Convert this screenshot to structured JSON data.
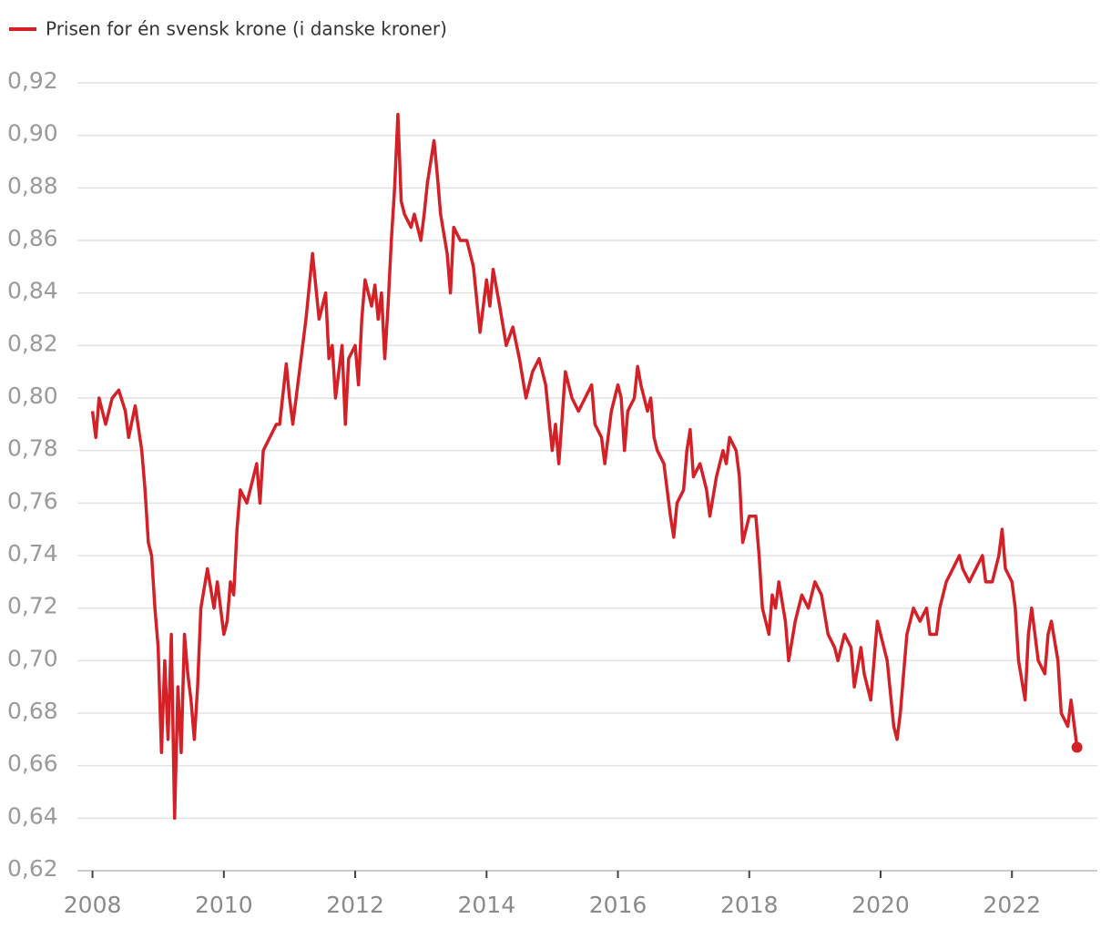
{
  "chart_data": {
    "type": "line",
    "xlim": [
      2007.77,
      2023.3
    ],
    "xticks": [
      2008,
      2010,
      2012,
      2014,
      2016,
      2018,
      2020,
      2022
    ],
    "ylim": [
      0.62,
      0.92
    ],
    "yticks": [
      {
        "value": 0.62,
        "label": "0,62"
      },
      {
        "value": 0.64,
        "label": "0,64"
      },
      {
        "value": 0.66,
        "label": "0,66"
      },
      {
        "value": 0.68,
        "label": "0,68"
      },
      {
        "value": 0.7,
        "label": "0,70"
      },
      {
        "value": 0.72,
        "label": "0,72"
      },
      {
        "value": 0.74,
        "label": "0,74"
      },
      {
        "value": 0.76,
        "label": "0,76"
      },
      {
        "value": 0.78,
        "label": "0,78"
      },
      {
        "value": 0.8,
        "label": "0,80"
      },
      {
        "value": 0.82,
        "label": "0,82"
      },
      {
        "value": 0.84,
        "label": "0,84"
      },
      {
        "value": 0.86,
        "label": "0,86"
      },
      {
        "value": 0.88,
        "label": "0,88"
      },
      {
        "value": 0.9,
        "label": "0,90"
      },
      {
        "value": 0.92,
        "label": "0,92"
      }
    ],
    "grid": true,
    "x": [
      2008.0,
      2008.05,
      2008.1,
      2008.2,
      2008.3,
      2008.4,
      2008.5,
      2008.55,
      2008.65,
      2008.75,
      2008.8,
      2008.85,
      2008.9,
      2008.95,
      2009.0,
      2009.05,
      2009.1,
      2009.15,
      2009.2,
      2009.25,
      2009.3,
      2009.35,
      2009.4,
      2009.45,
      2009.5,
      2009.55,
      2009.6,
      2009.65,
      2009.75,
      2009.85,
      2009.9,
      2010.0,
      2010.05,
      2010.1,
      2010.15,
      2010.2,
      2010.25,
      2010.35,
      2010.45,
      2010.5,
      2010.55,
      2010.6,
      2010.7,
      2010.8,
      2010.85,
      2010.95,
      2011.0,
      2011.05,
      2011.15,
      2011.25,
      2011.35,
      2011.45,
      2011.55,
      2011.6,
      2011.65,
      2011.7,
      2011.8,
      2011.85,
      2011.9,
      2012.0,
      2012.05,
      2012.1,
      2012.15,
      2012.25,
      2012.3,
      2012.35,
      2012.4,
      2012.45,
      2012.5,
      2012.55,
      2012.6,
      2012.65,
      2012.7,
      2012.75,
      2012.85,
      2012.9,
      2013.0,
      2013.05,
      2013.1,
      2013.2,
      2013.25,
      2013.3,
      2013.4,
      2013.45,
      2013.5,
      2013.6,
      2013.7,
      2013.8,
      2013.9,
      2014.0,
      2014.05,
      2014.1,
      2014.2,
      2014.3,
      2014.4,
      2014.5,
      2014.6,
      2014.7,
      2014.8,
      2014.9,
      2015.0,
      2015.05,
      2015.1,
      2015.2,
      2015.3,
      2015.4,
      2015.5,
      2015.6,
      2015.65,
      2015.75,
      2015.8,
      2015.9,
      2016.0,
      2016.05,
      2016.1,
      2016.15,
      2016.25,
      2016.3,
      2016.35,
      2016.45,
      2016.5,
      2016.55,
      2016.6,
      2016.7,
      2016.8,
      2016.85,
      2016.9,
      2017.0,
      2017.05,
      2017.1,
      2017.15,
      2017.25,
      2017.35,
      2017.4,
      2017.5,
      2017.6,
      2017.65,
      2017.7,
      2017.8,
      2017.85,
      2017.9,
      2018.0,
      2018.1,
      2018.15,
      2018.2,
      2018.3,
      2018.35,
      2018.4,
      2018.45,
      2018.55,
      2018.6,
      2018.7,
      2018.8,
      2018.9,
      2019.0,
      2019.1,
      2019.2,
      2019.3,
      2019.35,
      2019.45,
      2019.55,
      2019.6,
      2019.7,
      2019.75,
      2019.85,
      2019.9,
      2019.95,
      2020.0,
      2020.1,
      2020.2,
      2020.25,
      2020.3,
      2020.4,
      2020.5,
      2020.6,
      2020.7,
      2020.75,
      2020.85,
      2020.9,
      2021.0,
      2021.1,
      2021.2,
      2021.25,
      2021.35,
      2021.45,
      2021.55,
      2021.6,
      2021.7,
      2021.8,
      2021.85,
      2021.9,
      2022.0,
      2022.05,
      2022.1,
      2022.2,
      2022.25,
      2022.3,
      2022.4,
      2022.5,
      2022.55,
      2022.6,
      2022.7,
      2022.75,
      2022.85,
      2022.9,
      2022.95,
      2022.99
    ],
    "series": [
      {
        "name": "Prisen for én svensk krone (i danske kroner)",
        "color": "#d42027",
        "values": [
          0.795,
          0.785,
          0.8,
          0.79,
          0.8,
          0.803,
          0.795,
          0.785,
          0.797,
          0.78,
          0.765,
          0.745,
          0.74,
          0.72,
          0.705,
          0.665,
          0.7,
          0.67,
          0.71,
          0.64,
          0.69,
          0.665,
          0.71,
          0.695,
          0.685,
          0.67,
          0.69,
          0.72,
          0.735,
          0.72,
          0.73,
          0.71,
          0.715,
          0.73,
          0.725,
          0.75,
          0.765,
          0.76,
          0.77,
          0.775,
          0.76,
          0.78,
          0.785,
          0.79,
          0.79,
          0.813,
          0.8,
          0.79,
          0.81,
          0.83,
          0.855,
          0.83,
          0.84,
          0.815,
          0.82,
          0.8,
          0.82,
          0.79,
          0.815,
          0.82,
          0.805,
          0.83,
          0.845,
          0.835,
          0.843,
          0.83,
          0.84,
          0.815,
          0.835,
          0.86,
          0.88,
          0.908,
          0.875,
          0.87,
          0.865,
          0.87,
          0.86,
          0.87,
          0.882,
          0.898,
          0.885,
          0.87,
          0.855,
          0.84,
          0.865,
          0.86,
          0.86,
          0.85,
          0.825,
          0.845,
          0.835,
          0.849,
          0.835,
          0.82,
          0.827,
          0.815,
          0.8,
          0.81,
          0.815,
          0.805,
          0.78,
          0.79,
          0.775,
          0.81,
          0.8,
          0.795,
          0.8,
          0.805,
          0.79,
          0.785,
          0.775,
          0.795,
          0.805,
          0.8,
          0.78,
          0.795,
          0.8,
          0.812,
          0.805,
          0.795,
          0.8,
          0.785,
          0.78,
          0.775,
          0.755,
          0.747,
          0.76,
          0.765,
          0.78,
          0.788,
          0.77,
          0.775,
          0.765,
          0.755,
          0.77,
          0.78,
          0.775,
          0.785,
          0.78,
          0.77,
          0.745,
          0.755,
          0.755,
          0.74,
          0.72,
          0.71,
          0.725,
          0.72,
          0.73,
          0.715,
          0.7,
          0.715,
          0.725,
          0.72,
          0.73,
          0.725,
          0.71,
          0.705,
          0.7,
          0.71,
          0.705,
          0.69,
          0.705,
          0.695,
          0.685,
          0.7,
          0.715,
          0.71,
          0.7,
          0.675,
          0.67,
          0.68,
          0.71,
          0.72,
          0.715,
          0.72,
          0.71,
          0.71,
          0.72,
          0.73,
          0.735,
          0.74,
          0.735,
          0.73,
          0.735,
          0.74,
          0.73,
          0.73,
          0.74,
          0.75,
          0.735,
          0.73,
          0.72,
          0.7,
          0.685,
          0.71,
          0.72,
          0.7,
          0.695,
          0.71,
          0.715,
          0.7,
          0.68,
          0.675,
          0.685,
          0.675,
          0.667
        ]
      }
    ]
  }
}
